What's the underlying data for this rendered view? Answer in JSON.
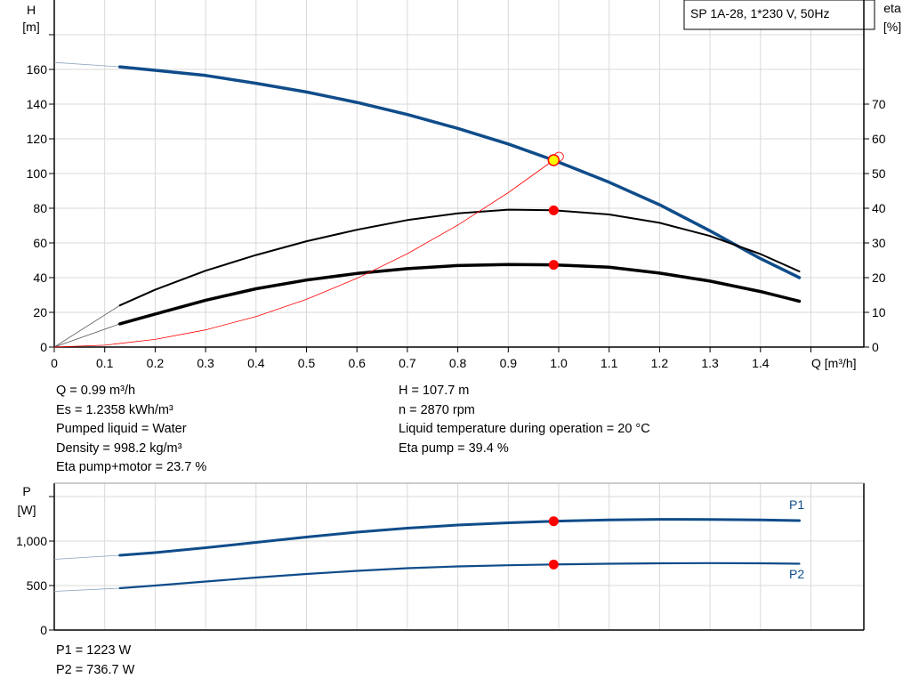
{
  "chart_data": [
    {
      "type": "line",
      "title": "SP 1A-28, 1*230 V, 50Hz",
      "xlabel": "Q [m³/h]",
      "ylabel": "H\n[m]",
      "y2label": "eta\n[%]",
      "xlim": [
        0,
        1.6
      ],
      "ylim": [
        0,
        200
      ],
      "y2lim": [
        0,
        100
      ],
      "xticks": [
        "0",
        "0.1",
        "0.2",
        "0.3",
        "0.4",
        "0.5",
        "0.6",
        "0.7",
        "0.8",
        "0.9",
        "1.0",
        "1.1",
        "1.2",
        "1.3",
        "1.4"
      ],
      "yticks": [
        "0",
        "20",
        "40",
        "60",
        "80",
        "100",
        "120",
        "140",
        "160"
      ],
      "y2ticks": [
        "0",
        "10",
        "20",
        "30",
        "40",
        "50",
        "60",
        "70"
      ],
      "grid": true,
      "series": [
        {
          "id": "H",
          "axis": "left",
          "color": "#0f4c8a",
          "extrapolated": [
            [
              0,
              164
            ],
            [
              0.13,
              161.5
            ]
          ],
          "x": [
            0.13,
            0.2,
            0.3,
            0.4,
            0.5,
            0.6,
            0.7,
            0.8,
            0.9,
            0.99,
            1.1,
            1.2,
            1.3,
            1.4,
            1.477
          ],
          "y": [
            161.5,
            159.5,
            156.5,
            152,
            147,
            141,
            134,
            126,
            117,
            107.7,
            95,
            82,
            67,
            51,
            40
          ]
        },
        {
          "id": "eta_pump",
          "axis": "right",
          "color": "#000000",
          "extrapolated": [
            [
              0,
              0
            ],
            [
              0.13,
              12
            ]
          ],
          "x": [
            0.13,
            0.2,
            0.3,
            0.4,
            0.5,
            0.6,
            0.7,
            0.8,
            0.9,
            0.99,
            1.1,
            1.2,
            1.3,
            1.4,
            1.477
          ],
          "y": [
            12,
            16.5,
            22,
            26.5,
            30.5,
            33.8,
            36.6,
            38.5,
            39.6,
            39.4,
            38.2,
            35.8,
            32,
            26.8,
            21.8
          ]
        },
        {
          "id": "eta_pump_motor",
          "axis": "right",
          "color": "#000000",
          "extrapolated": [
            [
              0,
              0
            ],
            [
              0.13,
              6.7
            ]
          ],
          "x": [
            0.13,
            0.2,
            0.3,
            0.4,
            0.5,
            0.6,
            0.7,
            0.8,
            0.9,
            0.99,
            1.1,
            1.2,
            1.3,
            1.4,
            1.477
          ],
          "y": [
            6.7,
            9.5,
            13.5,
            16.8,
            19.3,
            21.2,
            22.6,
            23.5,
            23.8,
            23.7,
            23,
            21.3,
            19,
            16,
            13.2
          ]
        },
        {
          "id": "system_curve",
          "axis": "left",
          "color": "#ff0000",
          "x": [
            0,
            0.1,
            0.2,
            0.3,
            0.4,
            0.5,
            0.6,
            0.7,
            0.8,
            0.9,
            0.99
          ],
          "y": [
            0,
            1.1,
            4.4,
            9.9,
            17.6,
            27.5,
            39.6,
            53.8,
            70.3,
            89,
            107.7
          ]
        }
      ],
      "operating_point": {
        "Q": 0.99,
        "H": 107.7,
        "eta_pump": 39.4,
        "eta_pump_motor": 23.7
      }
    },
    {
      "type": "line",
      "xlabel": "",
      "ylabel": "P\n[W]",
      "xlim": [
        0,
        1.6
      ],
      "ylim": [
        0,
        1650
      ],
      "yticks": [
        "0",
        "500",
        "1,000"
      ],
      "grid": true,
      "series": [
        {
          "id": "P1",
          "name": "P1",
          "color": "#0f4c8a",
          "extrapolated": [
            [
              0,
              795
            ],
            [
              0.13,
              840
            ]
          ],
          "x": [
            0.13,
            0.2,
            0.3,
            0.4,
            0.5,
            0.6,
            0.7,
            0.8,
            0.9,
            0.99,
            1.1,
            1.2,
            1.3,
            1.4,
            1.477
          ],
          "y": [
            840,
            870,
            925,
            985,
            1045,
            1100,
            1145,
            1180,
            1205,
            1223,
            1238,
            1244,
            1243,
            1238,
            1230
          ]
        },
        {
          "id": "P2",
          "name": "P2",
          "color": "#0f4c8a",
          "extrapolated": [
            [
              0,
              435
            ],
            [
              0.13,
              470
            ]
          ],
          "x": [
            0.13,
            0.2,
            0.3,
            0.4,
            0.5,
            0.6,
            0.7,
            0.8,
            0.9,
            0.99,
            1.1,
            1.2,
            1.3,
            1.4,
            1.477
          ],
          "y": [
            470,
            500,
            545,
            590,
            630,
            665,
            695,
            715,
            728,
            736.7,
            745,
            750,
            752,
            750,
            745
          ]
        }
      ],
      "operating_point": {
        "Q": 0.99,
        "P1": 1223,
        "P2": 736.7
      }
    }
  ],
  "readout_left": [
    "Q = 0.99 m³/h",
    "Es = 1.2358 kWh/m³",
    "Pumped liquid = Water",
    "Density = 998.2 kg/m³",
    "Eta pump+motor = 23.7 %"
  ],
  "readout_right": [
    "H = 107.7 m",
    "n = 2870 rpm",
    "Liquid temperature during operation = 20 °C",
    "Eta pump = 39.4 %"
  ],
  "power_readout": [
    "P1 = 1223 W",
    "P2 = 736.7 W"
  ],
  "colors": {
    "curve": "#0f4c8a",
    "grid": "#d9d9d9",
    "marker": "#ff0000",
    "duty_point": "#ffff00"
  }
}
